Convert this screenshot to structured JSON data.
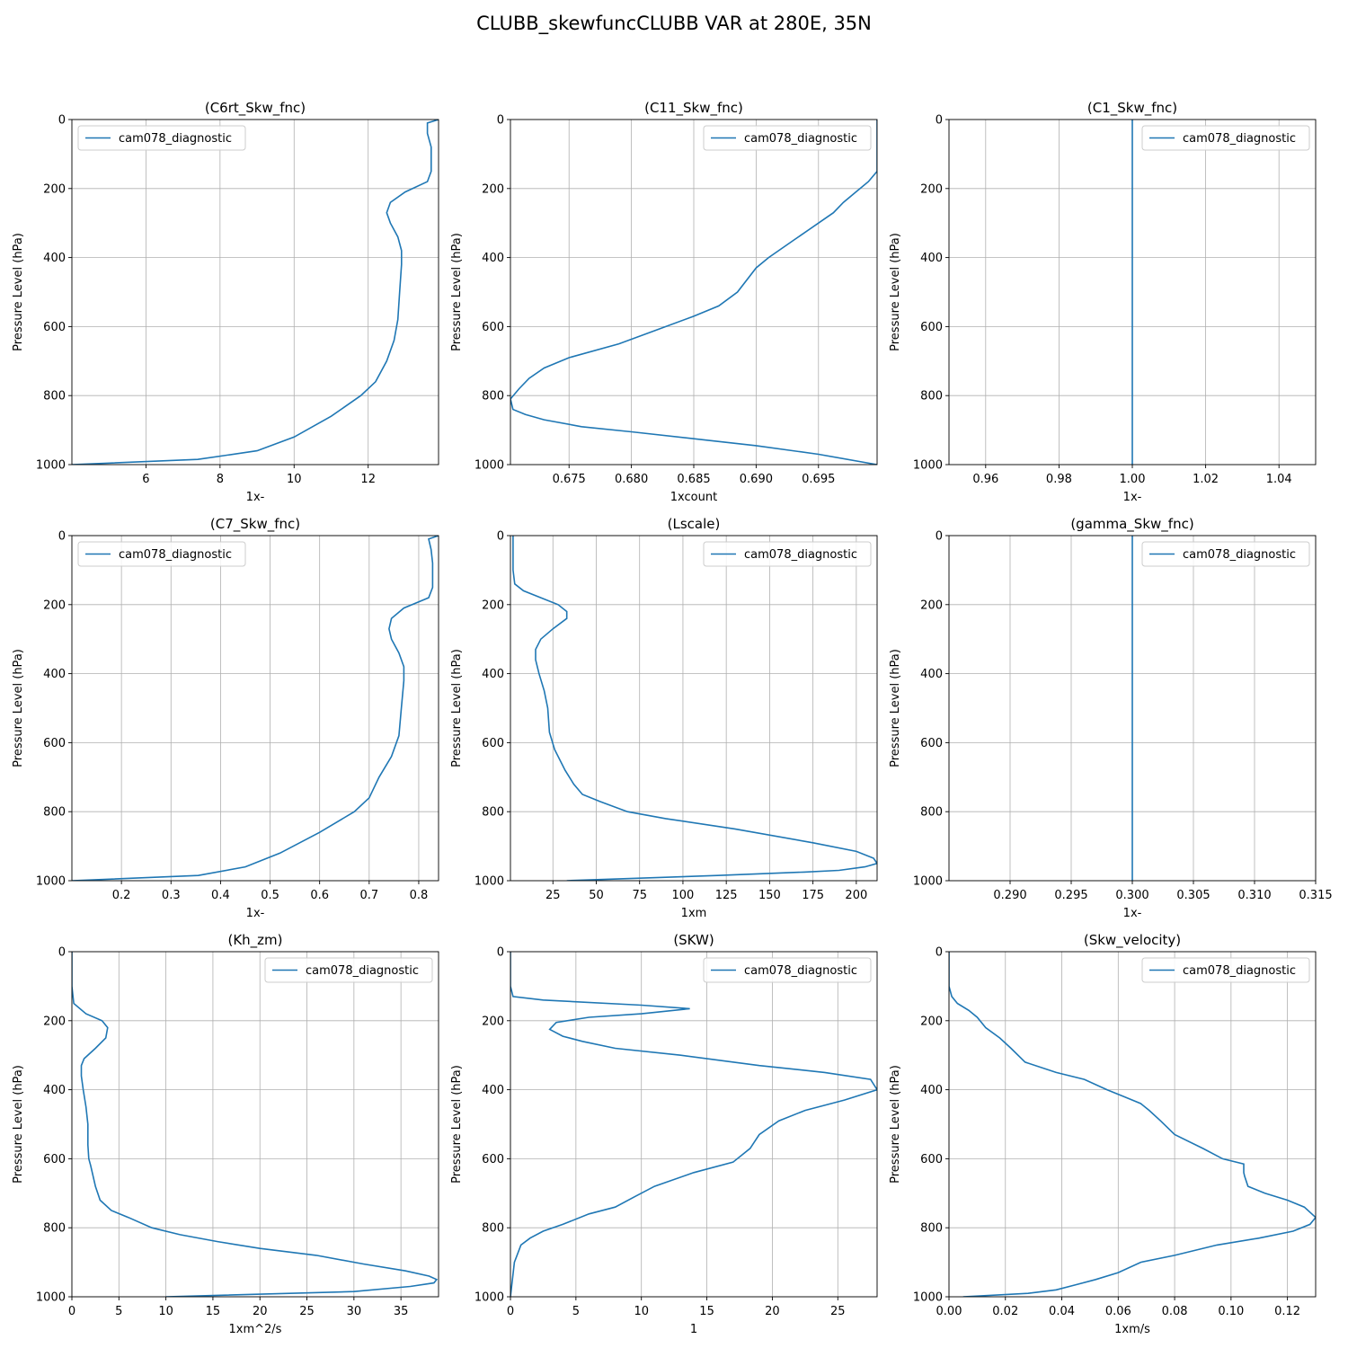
{
  "figure": {
    "suptitle": "CLUBB_skewfuncCLUBB VAR at 280E, 35N",
    "line_color": "#1f77b4",
    "grid": true
  },
  "chart_data": [
    {
      "type": "line",
      "title": "(C6rt_Skw_fnc)",
      "xlabel": "1x-",
      "ylabel": "Pressure Level (hPa)",
      "xlim": [
        4.0,
        13.9
      ],
      "ylim": [
        1000,
        0
      ],
      "xticks": [
        6,
        8,
        10,
        12
      ],
      "yticks": [
        0,
        200,
        400,
        600,
        800,
        1000
      ],
      "legend": "upper left",
      "series": [
        {
          "name": "cam078_diagnostic",
          "x": [
            13.9,
            13.6,
            13.6,
            13.7,
            13.7,
            13.7,
            13.6,
            13.0,
            12.6,
            12.5,
            12.6,
            12.8,
            12.9,
            12.9,
            12.85,
            12.8,
            12.7,
            12.5,
            12.2,
            11.8,
            11.0,
            10.0,
            9.0,
            7.4,
            4.0
          ],
          "y": [
            0,
            10,
            40,
            80,
            120,
            150,
            180,
            210,
            240,
            270,
            300,
            340,
            380,
            420,
            500,
            580,
            640,
            700,
            760,
            800,
            860,
            920,
            960,
            985,
            1000
          ]
        }
      ]
    },
    {
      "type": "line",
      "title": "(C11_Skw_fnc)",
      "xlabel": "1xcount",
      "ylabel": "Pressure Level (hPa)",
      "xlim": [
        0.6703,
        0.6997
      ],
      "ylim": [
        1000,
        0
      ],
      "xticks": [
        0.675,
        0.68,
        0.685,
        0.69,
        0.695
      ],
      "yticks": [
        0,
        200,
        400,
        600,
        800,
        1000
      ],
      "legend": "upper right",
      "series": [
        {
          "name": "cam078_diagnostic",
          "x": [
            0.6997,
            0.6997,
            0.6997,
            0.699,
            0.698,
            0.697,
            0.6962,
            0.695,
            0.693,
            0.691,
            0.69,
            0.6885,
            0.687,
            0.685,
            0.682,
            0.679,
            0.675,
            0.673,
            0.6718,
            0.671,
            0.6703,
            0.6705,
            0.6715,
            0.673,
            0.676,
            0.68,
            0.685,
            0.69,
            0.695,
            0.6997
          ],
          "y": [
            0,
            100,
            150,
            180,
            210,
            240,
            270,
            300,
            350,
            400,
            430,
            500,
            540,
            570,
            610,
            650,
            690,
            720,
            750,
            780,
            810,
            840,
            855,
            870,
            890,
            905,
            925,
            945,
            970,
            1000
          ]
        }
      ]
    },
    {
      "type": "line",
      "title": "(C1_Skw_fnc)",
      "xlabel": "1x-",
      "ylabel": "Pressure Level (hPa)",
      "xlim": [
        0.95,
        1.05
      ],
      "ylim": [
        1000,
        0
      ],
      "xticks": [
        0.96,
        0.98,
        1.0,
        1.02,
        1.04
      ],
      "yticks": [
        0,
        200,
        400,
        600,
        800,
        1000
      ],
      "legend": "upper right",
      "series": [
        {
          "name": "cam078_diagnostic",
          "x": [
            1.0,
            1.0
          ],
          "y": [
            0,
            1000
          ]
        }
      ]
    },
    {
      "type": "line",
      "title": "(C7_Skw_fnc)",
      "xlabel": "1x-",
      "ylabel": "Pressure Level (hPa)",
      "xlim": [
        0.1,
        0.84
      ],
      "ylim": [
        1000,
        0
      ],
      "xticks": [
        0.2,
        0.3,
        0.4,
        0.5,
        0.6,
        0.7,
        0.8
      ],
      "yticks": [
        0,
        200,
        400,
        600,
        800,
        1000
      ],
      "legend": "upper left",
      "series": [
        {
          "name": "cam078_diagnostic",
          "x": [
            0.84,
            0.82,
            0.825,
            0.828,
            0.828,
            0.828,
            0.82,
            0.77,
            0.745,
            0.74,
            0.745,
            0.76,
            0.77,
            0.77,
            0.765,
            0.76,
            0.745,
            0.72,
            0.7,
            0.67,
            0.6,
            0.52,
            0.45,
            0.355,
            0.1
          ],
          "y": [
            0,
            10,
            40,
            80,
            120,
            150,
            180,
            210,
            240,
            270,
            300,
            340,
            380,
            420,
            500,
            580,
            640,
            700,
            760,
            800,
            860,
            920,
            960,
            985,
            1000
          ]
        }
      ]
    },
    {
      "type": "line",
      "title": "(Lscale)",
      "xlabel": "1xm",
      "ylabel": "Pressure Level (hPa)",
      "xlim": [
        0.5,
        212
      ],
      "ylim": [
        1000,
        0
      ],
      "xticks": [
        25,
        50,
        75,
        100,
        125,
        150,
        175,
        200
      ],
      "yticks": [
        0,
        200,
        400,
        600,
        800,
        1000
      ],
      "legend": "upper right",
      "series": [
        {
          "name": "cam078_diagnostic",
          "x": [
            2,
            2,
            2,
            3,
            8,
            18,
            28,
            33,
            33,
            25,
            18,
            15,
            15,
            17,
            20,
            22,
            23,
            26,
            32,
            37,
            42,
            52,
            68,
            90,
            130,
            175,
            200,
            210,
            212,
            205,
            190,
            170,
            120,
            33
          ],
          "y": [
            0,
            50,
            100,
            140,
            160,
            180,
            200,
            220,
            240,
            270,
            300,
            330,
            360,
            400,
            450,
            500,
            570,
            620,
            680,
            720,
            750,
            770,
            800,
            820,
            850,
            890,
            915,
            935,
            950,
            960,
            970,
            975,
            985,
            1000
          ]
        }
      ]
    },
    {
      "type": "line",
      "title": "(gamma_Skw_fnc)",
      "xlabel": "1x-",
      "ylabel": "Pressure Level (hPa)",
      "xlim": [
        0.285,
        0.315
      ],
      "ylim": [
        1000,
        0
      ],
      "xticks": [
        0.29,
        0.295,
        0.3,
        0.305,
        0.31,
        0.315
      ],
      "yticks": [
        0,
        200,
        400,
        600,
        800,
        1000
      ],
      "legend": "upper right",
      "series": [
        {
          "name": "cam078_diagnostic",
          "x": [
            0.3,
            0.3
          ],
          "y": [
            0,
            1000
          ]
        }
      ]
    },
    {
      "type": "line",
      "title": "(Kh_zm)",
      "xlabel": "1xm^2/s",
      "ylabel": "Pressure Level (hPa)",
      "xlim": [
        0,
        39
      ],
      "ylim": [
        1000,
        0
      ],
      "xticks": [
        0,
        5,
        10,
        15,
        20,
        25,
        30,
        35
      ],
      "yticks": [
        0,
        200,
        400,
        600,
        800,
        1000
      ],
      "legend": "upper right",
      "series": [
        {
          "name": "cam078_diagnostic",
          "x": [
            0,
            0,
            0.2,
            1.5,
            3.2,
            3.8,
            3.6,
            2.5,
            1.3,
            1.0,
            1.0,
            1.2,
            1.5,
            1.7,
            1.7,
            1.8,
            2.0,
            2.5,
            3.0,
            4.2,
            6.0,
            8.5,
            11.5,
            15.5,
            20,
            26,
            31,
            35.5,
            38,
            38.8,
            38.5,
            36,
            30,
            10
          ],
          "y": [
            0,
            100,
            150,
            180,
            200,
            220,
            250,
            280,
            310,
            330,
            360,
            400,
            450,
            500,
            560,
            600,
            620,
            680,
            720,
            750,
            770,
            800,
            820,
            840,
            860,
            880,
            905,
            925,
            940,
            950,
            960,
            970,
            985,
            1000
          ]
        }
      ]
    },
    {
      "type": "line",
      "title": "(SKW)",
      "xlabel": "1",
      "ylabel": "Pressure Level (hPa)",
      "xlim": [
        0,
        28
      ],
      "ylim": [
        1000,
        0
      ],
      "xticks": [
        0,
        5,
        10,
        15,
        20,
        25
      ],
      "yticks": [
        0,
        200,
        400,
        600,
        800,
        1000
      ],
      "legend": "upper right",
      "series": [
        {
          "name": "cam078_diagnostic",
          "x": [
            0,
            0,
            0.2,
            2.5,
            10,
            13.7,
            10,
            6,
            3.5,
            3,
            4,
            5.5,
            8,
            13,
            19,
            24,
            27.5,
            28,
            25.5,
            22.5,
            20.5,
            19,
            18.3,
            17,
            14,
            11,
            9.5,
            8,
            6,
            4,
            2.5,
            1.5,
            0.8,
            0.3,
            0
          ],
          "y": [
            0,
            100,
            130,
            140,
            155,
            165,
            180,
            190,
            205,
            225,
            245,
            260,
            280,
            300,
            330,
            350,
            370,
            400,
            430,
            460,
            490,
            530,
            570,
            610,
            640,
            680,
            710,
            740,
            760,
            790,
            810,
            830,
            850,
            900,
            1000
          ]
        }
      ]
    },
    {
      "type": "line",
      "title": "(Skw_velocity)",
      "xlabel": "1xm/s",
      "ylabel": "Pressure Level (hPa)",
      "xlim": [
        0,
        0.13
      ],
      "ylim": [
        1000,
        0
      ],
      "xticks": [
        0.0,
        0.02,
        0.04,
        0.06,
        0.08,
        0.1,
        0.12
      ],
      "yticks": [
        0,
        200,
        400,
        600,
        800,
        1000
      ],
      "legend": "upper right",
      "series": [
        {
          "name": "cam078_diagnostic",
          "x": [
            0,
            0,
            0.001,
            0.003,
            0.007,
            0.01,
            0.013,
            0.018,
            0.022,
            0.027,
            0.038,
            0.048,
            0.056,
            0.062,
            0.068,
            0.071,
            0.075,
            0.08,
            0.09,
            0.097,
            0.1045,
            0.1045,
            0.1048,
            0.106,
            0.112,
            0.12,
            0.126,
            0.13,
            0.128,
            0.122,
            0.11,
            0.095,
            0.08,
            0.068,
            0.06,
            0.052,
            0.045,
            0.038,
            0.028,
            0.005
          ],
          "y": [
            0,
            100,
            130,
            150,
            170,
            190,
            220,
            250,
            280,
            320,
            350,
            370,
            400,
            420,
            440,
            460,
            490,
            530,
            570,
            600,
            615,
            640,
            650,
            680,
            700,
            720,
            740,
            770,
            790,
            810,
            830,
            850,
            880,
            900,
            930,
            950,
            965,
            980,
            990,
            1000
          ]
        }
      ]
    }
  ]
}
